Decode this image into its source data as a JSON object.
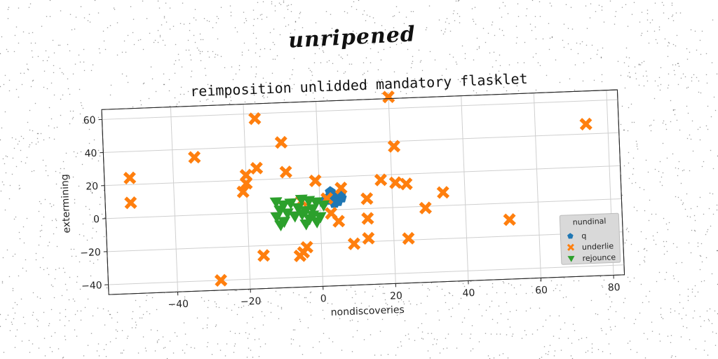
{
  "super_title": "unripened",
  "chart_data": {
    "type": "scatter",
    "title": "reimposition unlidded mandatory flasklet",
    "xlabel": "nondiscoveries",
    "ylabel": "extermining",
    "xlim": [
      -59,
      83
    ],
    "ylim": [
      -46,
      66
    ],
    "xticks": [
      -40,
      -20,
      0,
      20,
      40,
      60,
      80
    ],
    "yticks": [
      -40,
      -20,
      0,
      20,
      40,
      60
    ],
    "grid": true,
    "legend": {
      "title": "nundinal",
      "placement": "lower-right"
    },
    "series": [
      {
        "name": "q",
        "marker": "pentagon",
        "color": "#1f77b4",
        "points": [
          [
            3,
            11
          ],
          [
            4,
            9
          ],
          [
            5,
            8
          ],
          [
            6,
            7
          ],
          [
            3,
            6
          ],
          [
            5,
            5
          ],
          [
            2,
            7
          ],
          [
            4,
            4
          ],
          [
            6,
            10
          ],
          [
            1,
            5
          ]
        ]
      },
      {
        "name": "underlie",
        "marker": "x",
        "color": "#ff7f0e",
        "points": [
          [
            20,
            67
          ],
          [
            -17,
            57
          ],
          [
            74,
            46
          ],
          [
            -10,
            42
          ],
          [
            21,
            37
          ],
          [
            -34,
            35
          ],
          [
            -17,
            27
          ],
          [
            -52,
            24
          ],
          [
            -9,
            24
          ],
          [
            -20,
            23
          ],
          [
            -20,
            18
          ],
          [
            -1,
            18
          ],
          [
            6,
            13
          ],
          [
            17,
            17
          ],
          [
            21,
            15
          ],
          [
            24,
            14
          ],
          [
            -21,
            13
          ],
          [
            34,
            8
          ],
          [
            -52,
            9
          ],
          [
            13,
            6
          ],
          [
            -5,
            6
          ],
          [
            2,
            7
          ],
          [
            29,
            -1
          ],
          [
            3,
            -2
          ],
          [
            13,
            -6
          ],
          [
            5,
            -7
          ],
          [
            52,
            -10
          ],
          [
            13,
            -18
          ],
          [
            24,
            -19
          ],
          [
            9,
            -21
          ],
          [
            -4,
            -22
          ],
          [
            -5,
            -25
          ],
          [
            -16,
            -26
          ],
          [
            -6,
            -27
          ],
          [
            -28,
            -40
          ]
        ]
      },
      {
        "name": "rejounce",
        "marker": "triangle-down",
        "color": "#2ca02c",
        "points": [
          [
            -12,
            6
          ],
          [
            -10,
            4
          ],
          [
            -8,
            5
          ],
          [
            -11,
            1
          ],
          [
            -9,
            -1
          ],
          [
            -12,
            -3
          ],
          [
            -10,
            -6
          ],
          [
            -7,
            -3
          ],
          [
            -6,
            2
          ],
          [
            -5,
            -2
          ],
          [
            -4,
            0
          ],
          [
            -3,
            -5
          ],
          [
            -2,
            -3
          ],
          [
            -1,
            -7
          ],
          [
            0,
            -4
          ],
          [
            -3,
            6
          ],
          [
            -1,
            5
          ],
          [
            1,
            3
          ],
          [
            -2,
            1
          ],
          [
            -5,
            7
          ],
          [
            -4,
            -8
          ],
          [
            -11,
            -8
          ]
        ]
      }
    ]
  }
}
